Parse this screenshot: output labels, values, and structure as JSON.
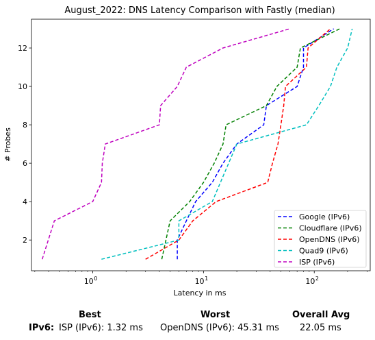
{
  "chart_data": {
    "type": "line",
    "title": "August_2022: DNS Latency Comparison with Fastly (median)",
    "xlabel": "Latency in ms",
    "ylabel": "# Probes",
    "xscale": "log",
    "xlim": [
      0.28,
      320
    ],
    "ylim": [
      0.4,
      13.5
    ],
    "x_ticks": [
      {
        "value": 1,
        "label": "10^0",
        "base": "10",
        "exp": "0"
      },
      {
        "value": 10,
        "label": "10^1",
        "base": "10",
        "exp": "1"
      },
      {
        "value": 100,
        "label": "10^2",
        "base": "10",
        "exp": "2"
      }
    ],
    "y_ticks": [
      2,
      4,
      6,
      8,
      10,
      12
    ],
    "grid": false,
    "legend_position": "bottom-right",
    "series": [
      {
        "name": "Google (IPv6)",
        "color": "#0000ff",
        "points": [
          [
            5.8,
            1
          ],
          [
            5.8,
            2
          ],
          [
            7,
            3
          ],
          [
            8.5,
            4
          ],
          [
            12,
            5
          ],
          [
            15,
            6
          ],
          [
            20,
            7
          ],
          [
            35,
            8
          ],
          [
            37,
            9
          ],
          [
            70,
            10
          ],
          [
            80,
            11
          ],
          [
            80,
            12
          ],
          [
            150,
            13
          ]
        ]
      },
      {
        "name": "Cloudflare (IPv6)",
        "color": "#008000",
        "points": [
          [
            4.2,
            1
          ],
          [
            5,
            3
          ],
          [
            7.5,
            4
          ],
          [
            10,
            5
          ],
          [
            12.5,
            6
          ],
          [
            15,
            7
          ],
          [
            16,
            8
          ],
          [
            37,
            9
          ],
          [
            46,
            10
          ],
          [
            70,
            11
          ],
          [
            75,
            12
          ],
          [
            170,
            13
          ]
        ]
      },
      {
        "name": "OpenDNS (IPv6)",
        "color": "#ff0000",
        "points": [
          [
            3,
            1
          ],
          [
            6,
            2
          ],
          [
            8,
            3
          ],
          [
            13,
            4
          ],
          [
            38,
            5
          ],
          [
            42,
            6
          ],
          [
            47,
            7
          ],
          [
            50,
            8
          ],
          [
            53,
            9
          ],
          [
            55,
            10
          ],
          [
            85,
            11
          ],
          [
            88,
            12
          ],
          [
            140,
            13
          ]
        ]
      },
      {
        "name": "Quad9 (IPv6)",
        "color": "#00bfbf",
        "points": [
          [
            1.2,
            1
          ],
          [
            6,
            2
          ],
          [
            6,
            3
          ],
          [
            12,
            4
          ],
          [
            20,
            7
          ],
          [
            85,
            8
          ],
          [
            110,
            9
          ],
          [
            140,
            10
          ],
          [
            160,
            11
          ],
          [
            200,
            12
          ],
          [
            220,
            13
          ]
        ]
      },
      {
        "name": "ISP (IPv6)",
        "color": "#bf00bf",
        "points": [
          [
            0.35,
            1
          ],
          [
            0.45,
            3
          ],
          [
            1,
            4
          ],
          [
            1.2,
            5
          ],
          [
            1.22,
            6
          ],
          [
            1.3,
            7
          ],
          [
            4,
            8
          ],
          [
            4.1,
            9
          ],
          [
            5.8,
            10
          ],
          [
            7,
            11
          ],
          [
            15,
            12
          ],
          [
            60,
            13
          ]
        ]
      }
    ]
  },
  "summary": {
    "best_header": "Best",
    "worst_header": "Worst",
    "avg_header": "Overall Avg",
    "row_label": "IPv6:",
    "best_value": "ISP (IPv6): 1.32 ms",
    "worst_value": "OpenDNS (IPv6): 45.31 ms",
    "avg_value": "22.05 ms"
  }
}
